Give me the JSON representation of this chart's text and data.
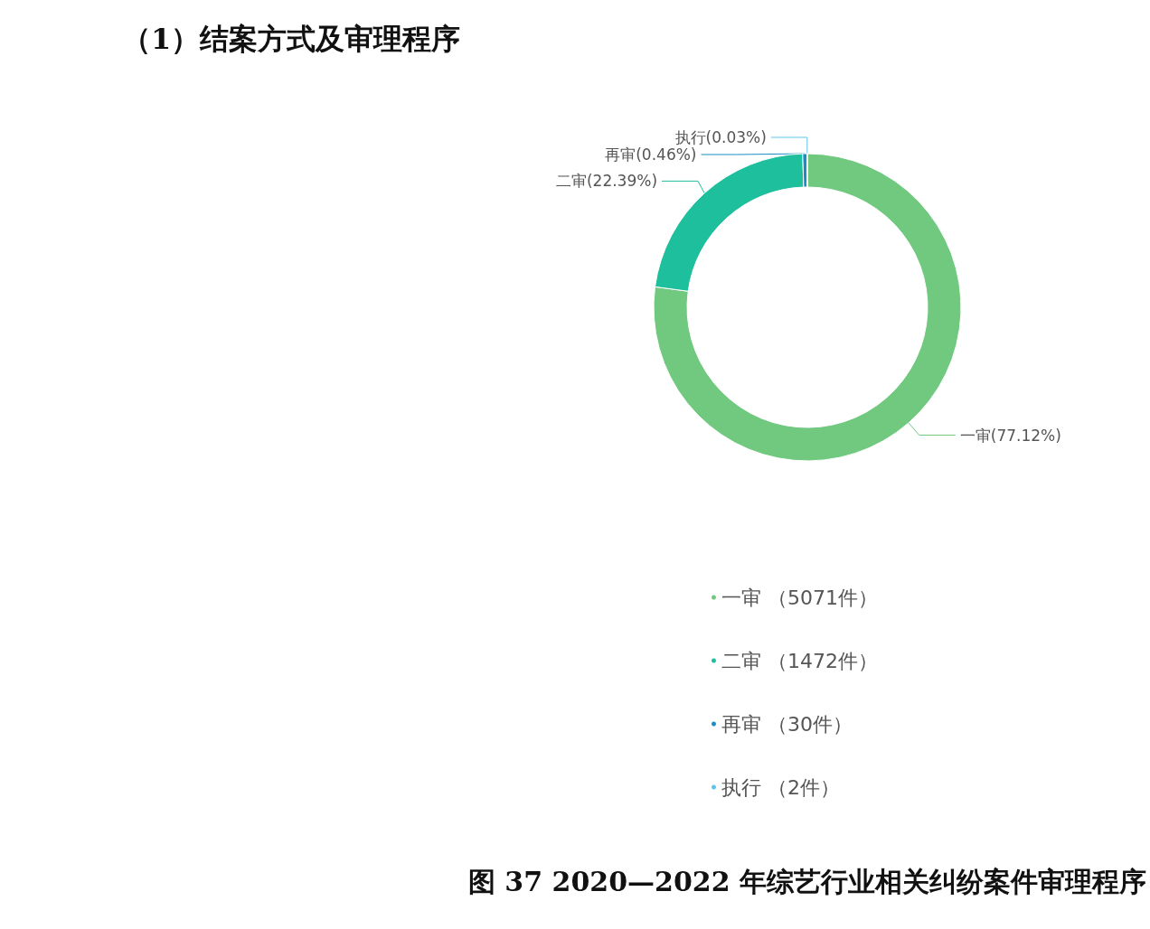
{
  "chart_data": {
    "type": "donut",
    "title": "（1）结案方式及审理程序",
    "categories": [
      "一审 （5071件）",
      "二审 （1472件）",
      "再审 （30件）",
      "执行 （2件）"
    ],
    "values": [
      5071,
      1472,
      30,
      2
    ],
    "colors": [
      "#70c97f",
      "#1dbf9c",
      "#1a8cc6",
      "#5cc3ea"
    ],
    "value_labels": [
      "一审(77.12%)",
      "二审(22.39%)",
      "再审(0.46%)",
      "执行(0.03%)"
    ],
    "legend": "bottom",
    "annotations": [
      "图 37 2020—2022 年综艺行业相关纠纷案件审理程序"
    ]
  }
}
